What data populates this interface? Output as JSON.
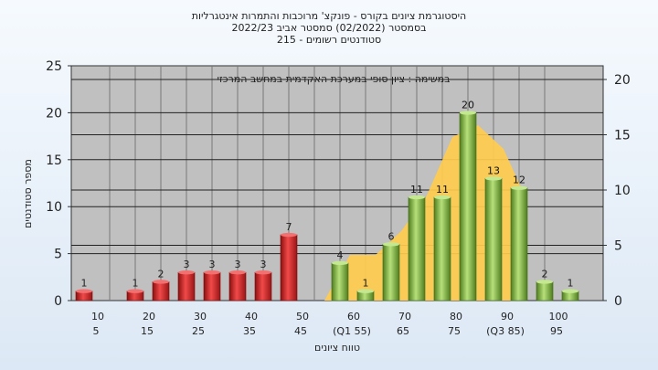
{
  "chart_data": {
    "type": "bar",
    "title": [
      "היסטוגרמת ציונים בקורס - פונקצ' מרוכבות והתמרות אינטגרליות",
      "בסמסטר (02/2022) סמסטר אביב 2022/23",
      "סטודנטים רשומים - 215"
    ],
    "subtitle": "במשימה : ציון סופי במערכת האקדמית במחשב המרכזי",
    "xlabel": "טווח ציונים",
    "ylabel": "מספר סטודנטים",
    "ylim": [
      0,
      25
    ],
    "y2lim": [
      0,
      20
    ],
    "yticks": [
      0,
      5,
      10,
      15,
      20,
      25
    ],
    "y2ticks": [
      0,
      5,
      10,
      15,
      20
    ],
    "x_tick_labels_lower": [
      "5",
      "15",
      "25",
      "35",
      "45",
      "(Q1 55)",
      "65",
      "75",
      "(Q3 85)",
      "95"
    ],
    "x_tick_labels_upper": [
      "10",
      "20",
      "30",
      "40",
      "50",
      "60",
      "70",
      "80",
      "90",
      "100"
    ],
    "bins": [
      5,
      15,
      20,
      25,
      30,
      35,
      40,
      45,
      55,
      60,
      65,
      70,
      75,
      80,
      85,
      90,
      95,
      100
    ],
    "values": [
      1,
      1,
      2,
      3,
      3,
      3,
      3,
      7,
      4,
      1,
      6,
      11,
      11,
      20,
      13,
      12,
      2,
      1
    ],
    "bar_colors": {
      "fail": "#e02828",
      "pass": "#8cc04a"
    },
    "area_color": "#ffcc4d",
    "grid": true
  }
}
